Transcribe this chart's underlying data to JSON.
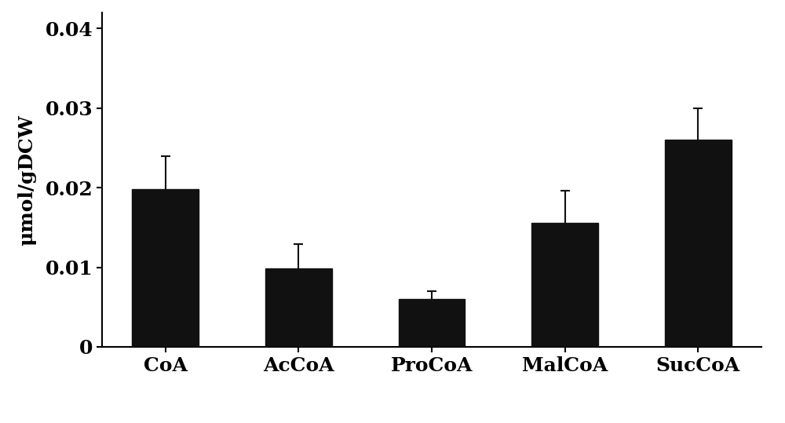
{
  "categories": [
    "CoA",
    "AcCoA",
    "ProCoA",
    "MalCoA",
    "SucCoA"
  ],
  "values": [
    0.0198,
    0.0099,
    0.006,
    0.0156,
    0.026
  ],
  "errors": [
    0.0042,
    0.003,
    0.001,
    0.004,
    0.004
  ],
  "bar_color": "#111111",
  "bar_edgecolor": "#111111",
  "error_color": "#111111",
  "ylabel": "μmol/gDCW",
  "ylim": [
    0,
    0.042
  ],
  "yticks": [
    0,
    0.01,
    0.02,
    0.03,
    0.04
  ],
  "ytick_labels": [
    "0",
    "0.01",
    "0.02",
    "0.03",
    "0.04"
  ],
  "tick_fontsize": 18,
  "label_fontsize": 18,
  "bar_width": 0.5,
  "capsize": 4,
  "background_color": "#ffffff",
  "spine_color": "#000000",
  "figsize": [
    10.0,
    5.39
  ],
  "dpi": 100
}
